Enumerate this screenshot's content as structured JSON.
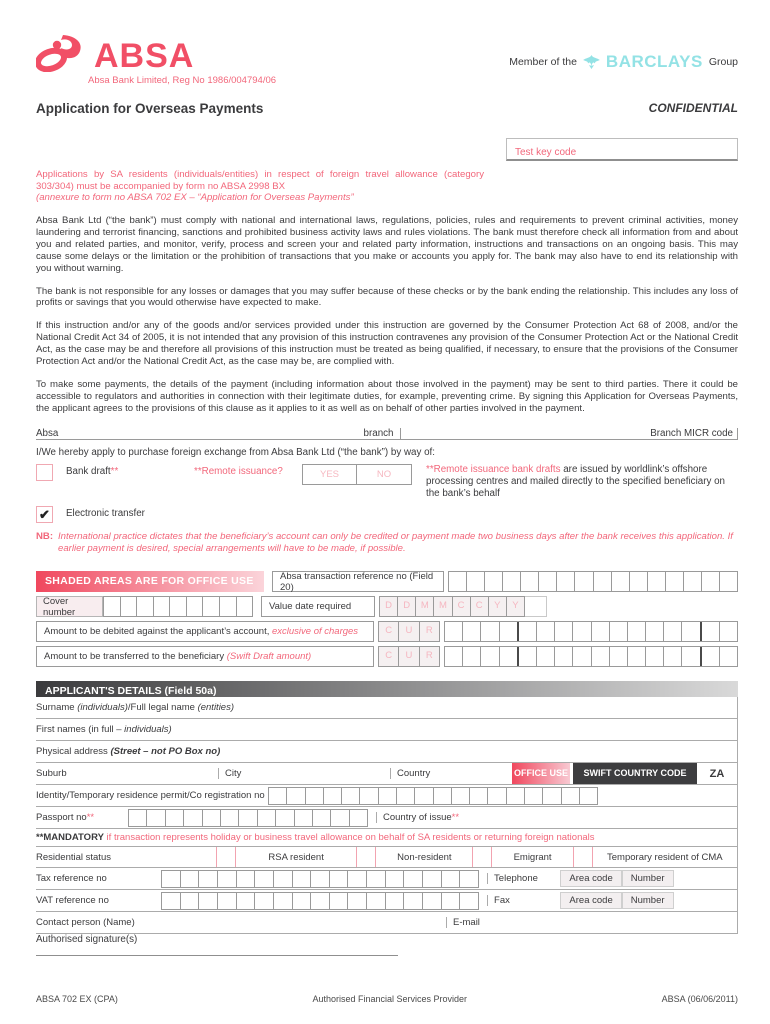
{
  "header": {
    "logo_word": "ABSA",
    "tagline": "Absa Bank Limited, Reg No 1986/004794/06",
    "member_prefix": "Member of the",
    "member_brand": "BARCLAYS",
    "member_suffix": "Group",
    "title": "Application for Overseas Payments",
    "confidential": "CONFIDENTIAL",
    "test_key_label": "Test key code"
  },
  "notice": {
    "main": "Applications by SA residents (individuals/entities) in respect of foreign travel allowance (category 303/304) must be accompanied by form no ABSA 2998 BX",
    "italic": "(annexure to form no ABSA 702 EX – “Application for Overseas Payments”"
  },
  "paragraphs": [
    "Absa Bank Ltd (“the bank”) must comply with national and international laws, regulations, policies, rules and requirements to prevent criminal activities, money laundering and terrorist financing, sanctions and prohibited business activity laws and rules violations. The bank must therefore check all information from and about you and related parties, and monitor, verify, process and screen your and related party information, instructions and transactions on an ongoing basis. This may cause some delays or the limitation or the prohibition of transactions that you make or accounts you apply for. The bank may also have to end its relationship with you without warning.",
    "The bank is not responsible for any losses or damages that you may suffer because of these checks or by the bank ending the relationship. This includes any loss of profits or savings that you would otherwise have expected to make.",
    "If this instruction and/or any of the goods and/or services provided under this instruction are governed by the Consumer Protection Act 68 of 2008, and/or the National Credit Act 34 of 2005, it is not intended that any provision of this instruction contravenes any provision of the Consumer Protection Act or the National Credit Act, as the case may be and therefore all provisions of this instruction must be treated as being qualified, if necessary, to ensure that the provisions of the Consumer Protection Act and/or the National Credit Act, as the case may be, are complied with.",
    "To make some payments, the details of the payment (including information about those involved in the payment) may be sent to third parties. There it could be accessible to regulators and authorities in connection with their legitimate duties, for example, preventing crime. By signing this Application for Overseas Payments, the applicant agrees to the provisions of this clause as it applies to it as well as on behalf of other parties involved in the payment."
  ],
  "branch_row": {
    "bank": "Absa",
    "branch_label": "branch",
    "micr_label": "Branch MICR code"
  },
  "apply_line": "I/We hereby apply to purchase foreign exchange from Absa Bank Ltd (“the bank”) by way of:",
  "payment_options": {
    "bank_draft": "Bank draft",
    "marker": "**",
    "remote_question": "**Remote issuance?",
    "yes": "YES",
    "no": "NO",
    "remote_note_pink": "**Remote issuance bank drafts",
    "remote_note_rest": " are issued by worldlink’s offshore processing centres and mailed directly to the specified beneficiary on the bank’s behalf",
    "electronic": "Electronic transfer",
    "checkmark": "✔"
  },
  "nb": {
    "prefix": "NB:",
    "text": "International practice dictates that the beneficiary’s account can only be credited or payment made two business days after the bank receives this application. If earlier payment is desired, special arrangements will have to be made, if possible."
  },
  "office_use": {
    "banner": "SHADED AREAS ARE FOR OFFICE USE",
    "ref_label": "Absa transaction reference no (Field 20)",
    "ref_cells": 16,
    "cover_label": "Cover number",
    "cover_cells": 9,
    "value_date_label": "Value date required",
    "value_date_letters": [
      "D",
      "D",
      "M",
      "M",
      "C",
      "C",
      "Y",
      "Y"
    ],
    "amount_debit_label": "Amount to be debited against the applicant’s account,",
    "amount_debit_note": " exclusive of charges",
    "amount_transfer_label": "Amount to be transferred to the beneficiary ",
    "amount_transfer_note": "(Swift Draft amount)",
    "cur_letters": [
      "C",
      "U",
      "R"
    ],
    "amount_cells": 16
  },
  "applicant": {
    "banner": "APPLICANT'S DETAILS (Field 50a)",
    "surname_a": "Surname ",
    "surname_b": "(individuals)",
    "surname_c": "/Full legal name ",
    "surname_d": "(entities)",
    "first_a": "First names (in full – ",
    "first_b": "individuals)",
    "physical_a": "Physical address ",
    "physical_b": "(Street – not PO Box no)",
    "suburb": "Suburb",
    "city": "City",
    "country": "Country",
    "office_use": "OFFICE USE",
    "swift": "SWIFT COUNTRY CODE",
    "za": "ZA",
    "identity_label": "Identity/Temporary residence permit/Co registration no",
    "identity_cells": 18,
    "passport_label": "Passport no",
    "passport_marker": "**",
    "passport_cells": 13,
    "country_issue": "Country of issue",
    "country_issue_marker": "**",
    "mandatory_prefix": "**MANDATORY",
    "mandatory_text": " if transaction represents holiday or business travel allowance on behalf of SA residents or returning foreign nationals",
    "residential_label": "Residential status",
    "residential_options": [
      "RSA resident",
      "Non-resident",
      "Emigrant",
      "Temporary resident of CMA"
    ],
    "tax_label": "Tax reference no",
    "tax_cells": 17,
    "vat_label": "VAT reference no",
    "vat_cells": 17,
    "telephone": "Telephone",
    "fax": "Fax",
    "area_code": "Area code",
    "number": "Number",
    "contact_label": "Contact person (Name)",
    "email_label": "E-mail"
  },
  "signature_label": "Authorised signature(s)",
  "footer": {
    "left": "ABSA 702 EX (CPA)",
    "center": "Authorised Financial Services Provider",
    "right": "ABSA (06/06/2011)"
  },
  "colors": {
    "brand_pink": "#f0485e",
    "barclays_teal": "#93e2e5",
    "dark": "#3b3b3d"
  }
}
